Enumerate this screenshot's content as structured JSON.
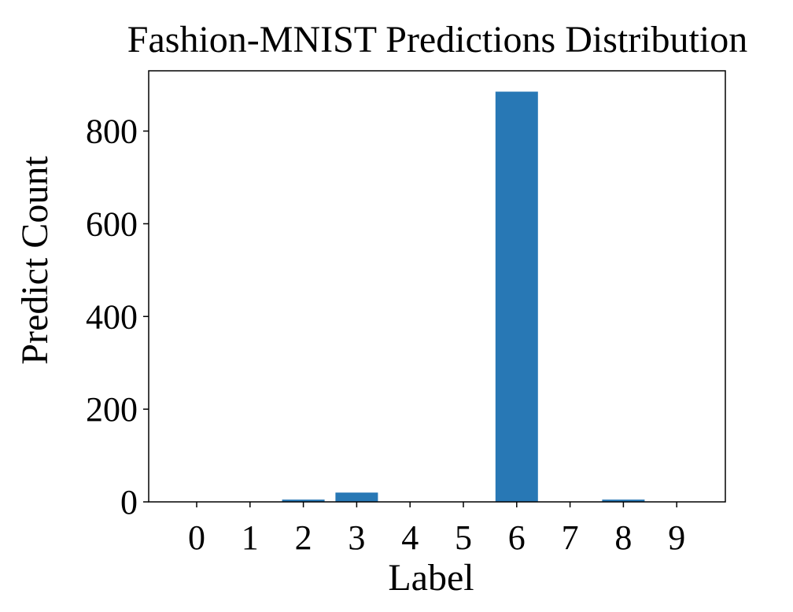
{
  "chart_data": {
    "type": "bar",
    "title": "Fashion-MNIST Predictions Distribution",
    "xlabel": "Label",
    "ylabel": "Predict Count",
    "categories": [
      "0",
      "1",
      "2",
      "3",
      "4",
      "5",
      "6",
      "7",
      "8",
      "9"
    ],
    "values": [
      0,
      0,
      5,
      20,
      0,
      0,
      885,
      0,
      5,
      0
    ],
    "ylim": [
      0,
      930
    ],
    "yticks": [
      0,
      200,
      400,
      600,
      800
    ],
    "bar_color": "#2878b5",
    "grid": false,
    "legend": "none"
  }
}
